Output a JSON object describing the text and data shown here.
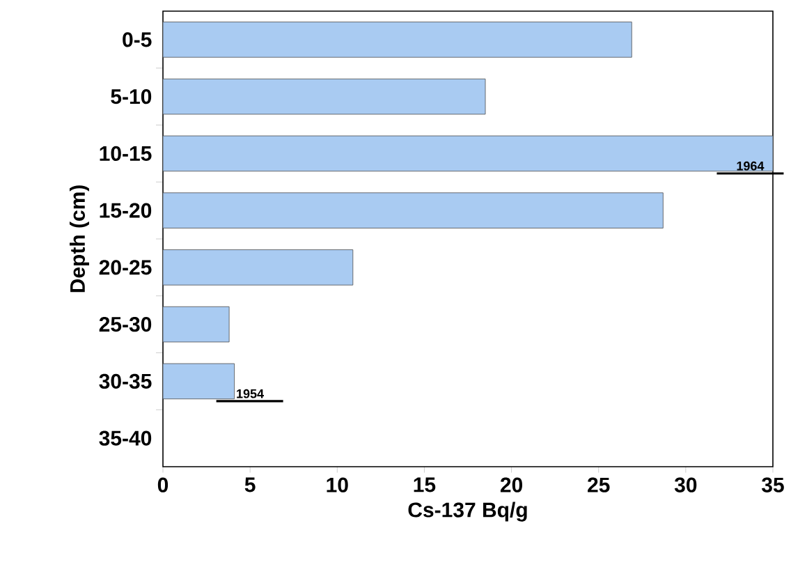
{
  "chart_data": {
    "type": "bar",
    "orientation": "horizontal",
    "xlabel": "Cs-137  Bq/g",
    "ylabel": "Depth (cm)",
    "categories": [
      "0-5",
      "5-10",
      "10-15",
      "15-20",
      "20-25",
      "25-30",
      "30-35",
      "35-40"
    ],
    "values": [
      26.9,
      18.5,
      35,
      28.7,
      10.9,
      3.8,
      4.1,
      null
    ],
    "color": "#a9cbf2",
    "xlim": [
      0,
      35
    ],
    "xticks": [
      0,
      5,
      10,
      15,
      20,
      25,
      30,
      35
    ],
    "grid": false,
    "annotations": [
      {
        "text": "1964",
        "x": 33.7,
        "y": "10-15"
      },
      {
        "text": "1954",
        "x": 4.1,
        "y": "30-35"
      }
    ]
  }
}
